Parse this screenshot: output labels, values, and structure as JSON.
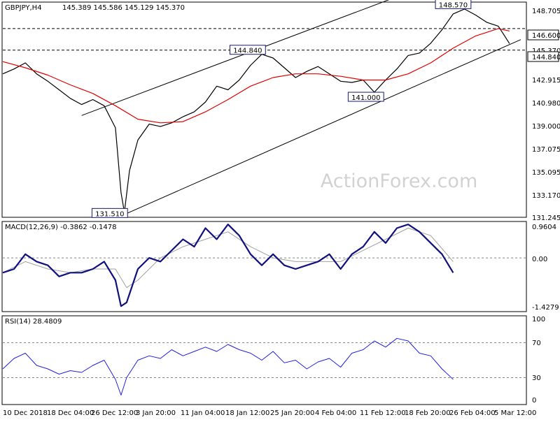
{
  "header": {
    "symbol": "GBPJPY,H4",
    "ohlc": "145.389 145.586 145.129 145.370"
  },
  "watermark": "ActionForex.com",
  "colors": {
    "price": "#000000",
    "sma": "#e00000",
    "macd": "#101080",
    "signal": "#a0a0a0",
    "rsi": "#2020e0",
    "channel": "#000000",
    "level_line": "#000000"
  },
  "x_axis": {
    "labels": [
      "10 Dec 2018",
      "18 Dec 04:00",
      "26 Dec 12:00",
      "3 Jan 20:00",
      "11 Jan 04:00",
      "18 Jan 12:00",
      "25 Jan 20:00",
      "4 Feb 04:00",
      "11 Feb 12:00",
      "18 Feb 20:00",
      "26 Feb 04:00",
      "5 Mar 12:00"
    ]
  },
  "chart_data": [
    {
      "type": "candlestick",
      "series": [
        {
          "name": "GBPJPY,H4"
        }
      ],
      "y_ticks": [
        "148.705",
        "146.600",
        "145.370",
        "144.840",
        "142.915",
        "140.980",
        "139.000",
        "137.075",
        "135.095",
        "133.170",
        "131.245"
      ],
      "ylim": [
        131.245,
        148.705
      ],
      "price_path": [
        {
          "x": 0,
          "y": 142.9
        },
        {
          "x": 2,
          "y": 143.3
        },
        {
          "x": 4,
          "y": 143.8
        },
        {
          "x": 6,
          "y": 142.9
        },
        {
          "x": 8,
          "y": 142.3
        },
        {
          "x": 10,
          "y": 141.6
        },
        {
          "x": 12,
          "y": 140.9
        },
        {
          "x": 14,
          "y": 140.4
        },
        {
          "x": 16,
          "y": 140.8
        },
        {
          "x": 18,
          "y": 140.3
        },
        {
          "x": 20,
          "y": 138.5
        },
        {
          "x": 21,
          "y": 133.2
        },
        {
          "x": 21.6,
          "y": 131.6
        },
        {
          "x": 22.5,
          "y": 135.0
        },
        {
          "x": 24,
          "y": 137.5
        },
        {
          "x": 26,
          "y": 138.8
        },
        {
          "x": 28,
          "y": 138.6
        },
        {
          "x": 30,
          "y": 138.9
        },
        {
          "x": 32,
          "y": 139.4
        },
        {
          "x": 34,
          "y": 139.8
        },
        {
          "x": 36,
          "y": 140.6
        },
        {
          "x": 38,
          "y": 141.9
        },
        {
          "x": 40,
          "y": 141.6
        },
        {
          "x": 42,
          "y": 142.4
        },
        {
          "x": 44,
          "y": 143.6
        },
        {
          "x": 46,
          "y": 144.5
        },
        {
          "x": 48,
          "y": 144.2
        },
        {
          "x": 50,
          "y": 143.4
        },
        {
          "x": 52,
          "y": 142.6
        },
        {
          "x": 54,
          "y": 143.1
        },
        {
          "x": 56,
          "y": 143.5
        },
        {
          "x": 58,
          "y": 142.9
        },
        {
          "x": 60,
          "y": 142.3
        },
        {
          "x": 62,
          "y": 142.2
        },
        {
          "x": 64,
          "y": 142.4
        },
        {
          "x": 66,
          "y": 141.4
        },
        {
          "x": 68,
          "y": 142.4
        },
        {
          "x": 70,
          "y": 143.3
        },
        {
          "x": 72,
          "y": 144.4
        },
        {
          "x": 74,
          "y": 144.6
        },
        {
          "x": 76,
          "y": 145.4
        },
        {
          "x": 78,
          "y": 146.5
        },
        {
          "x": 80,
          "y": 147.8
        },
        {
          "x": 82,
          "y": 148.2
        },
        {
          "x": 84,
          "y": 147.7
        },
        {
          "x": 86,
          "y": 147.1
        },
        {
          "x": 88,
          "y": 146.8
        },
        {
          "x": 89,
          "y": 146.1
        },
        {
          "x": 90,
          "y": 145.37
        }
      ],
      "sma_path": [
        {
          "x": 0,
          "y": 143.9
        },
        {
          "x": 4,
          "y": 143.4
        },
        {
          "x": 8,
          "y": 142.8
        },
        {
          "x": 12,
          "y": 142.0
        },
        {
          "x": 16,
          "y": 141.3
        },
        {
          "x": 20,
          "y": 140.3
        },
        {
          "x": 24,
          "y": 139.2
        },
        {
          "x": 28,
          "y": 138.9
        },
        {
          "x": 32,
          "y": 139.0
        },
        {
          "x": 36,
          "y": 139.8
        },
        {
          "x": 40,
          "y": 140.8
        },
        {
          "x": 44,
          "y": 141.9
        },
        {
          "x": 48,
          "y": 142.6
        },
        {
          "x": 52,
          "y": 142.9
        },
        {
          "x": 56,
          "y": 142.9
        },
        {
          "x": 60,
          "y": 142.7
        },
        {
          "x": 64,
          "y": 142.4
        },
        {
          "x": 68,
          "y": 142.4
        },
        {
          "x": 72,
          "y": 142.9
        },
        {
          "x": 76,
          "y": 143.8
        },
        {
          "x": 80,
          "y": 145.0
        },
        {
          "x": 84,
          "y": 146.0
        },
        {
          "x": 88,
          "y": 146.6
        },
        {
          "x": 90,
          "y": 146.4
        }
      ],
      "channel_upper": [
        {
          "x": 14,
          "y": 139.5
        },
        {
          "x": 70,
          "y": 149.2
        }
      ],
      "channel_lower": [
        {
          "x": 22,
          "y": 131.5
        },
        {
          "x": 92,
          "y": 145.7
        }
      ],
      "horizontal_levels": [
        146.6,
        144.84
      ],
      "annotations": [
        {
          "text": "148.570",
          "x": 80,
          "y": 148.57
        },
        {
          "text": "144.840",
          "x": 43.5,
          "y": 144.84
        },
        {
          "text": "141.000",
          "x": 64.5,
          "y": 141.0
        },
        {
          "text": "131.510",
          "x": 19,
          "y": 131.51
        }
      ]
    },
    {
      "type": "line",
      "title": "MACD(12,26,9) -0.3862 -0.1478",
      "series": [
        {
          "name": "MACD"
        },
        {
          "name": "Signal"
        }
      ],
      "y_ticks": [
        "0.9604",
        "0.00",
        "-1.4279"
      ],
      "ylim": [
        -1.4279,
        0.9604
      ],
      "macd_path": [
        {
          "x": 0,
          "y": -0.4
        },
        {
          "x": 2,
          "y": -0.3
        },
        {
          "x": 4,
          "y": 0.1
        },
        {
          "x": 6,
          "y": -0.1
        },
        {
          "x": 8,
          "y": -0.2
        },
        {
          "x": 10,
          "y": -0.5
        },
        {
          "x": 12,
          "y": -0.4
        },
        {
          "x": 14,
          "y": -0.4
        },
        {
          "x": 16,
          "y": -0.3
        },
        {
          "x": 18,
          "y": -0.1
        },
        {
          "x": 20,
          "y": -0.6
        },
        {
          "x": 21,
          "y": -1.3
        },
        {
          "x": 22,
          "y": -1.2
        },
        {
          "x": 24,
          "y": -0.3
        },
        {
          "x": 26,
          "y": 0.0
        },
        {
          "x": 28,
          "y": -0.1
        },
        {
          "x": 30,
          "y": 0.2
        },
        {
          "x": 32,
          "y": 0.5
        },
        {
          "x": 34,
          "y": 0.3
        },
        {
          "x": 36,
          "y": 0.8
        },
        {
          "x": 38,
          "y": 0.5
        },
        {
          "x": 40,
          "y": 0.9
        },
        {
          "x": 42,
          "y": 0.6
        },
        {
          "x": 44,
          "y": 0.1
        },
        {
          "x": 46,
          "y": -0.2
        },
        {
          "x": 48,
          "y": 0.1
        },
        {
          "x": 50,
          "y": -0.2
        },
        {
          "x": 52,
          "y": -0.3
        },
        {
          "x": 54,
          "y": -0.2
        },
        {
          "x": 56,
          "y": -0.1
        },
        {
          "x": 58,
          "y": 0.1
        },
        {
          "x": 60,
          "y": -0.3
        },
        {
          "x": 62,
          "y": 0.1
        },
        {
          "x": 64,
          "y": 0.3
        },
        {
          "x": 66,
          "y": 0.7
        },
        {
          "x": 68,
          "y": 0.4
        },
        {
          "x": 70,
          "y": 0.8
        },
        {
          "x": 72,
          "y": 0.9
        },
        {
          "x": 74,
          "y": 0.7
        },
        {
          "x": 76,
          "y": 0.4
        },
        {
          "x": 78,
          "y": 0.1
        },
        {
          "x": 80,
          "y": -0.4
        }
      ],
      "signal_path": [
        {
          "x": 0,
          "y": -0.4
        },
        {
          "x": 4,
          "y": -0.1
        },
        {
          "x": 8,
          "y": -0.3
        },
        {
          "x": 12,
          "y": -0.4
        },
        {
          "x": 16,
          "y": -0.3
        },
        {
          "x": 20,
          "y": -0.3
        },
        {
          "x": 22,
          "y": -0.8
        },
        {
          "x": 24,
          "y": -0.6
        },
        {
          "x": 28,
          "y": 0.0
        },
        {
          "x": 32,
          "y": 0.3
        },
        {
          "x": 36,
          "y": 0.5
        },
        {
          "x": 40,
          "y": 0.7
        },
        {
          "x": 44,
          "y": 0.3
        },
        {
          "x": 48,
          "y": 0.0
        },
        {
          "x": 52,
          "y": -0.1
        },
        {
          "x": 56,
          "y": -0.1
        },
        {
          "x": 60,
          "y": -0.1
        },
        {
          "x": 64,
          "y": 0.2
        },
        {
          "x": 68,
          "y": 0.5
        },
        {
          "x": 72,
          "y": 0.8
        },
        {
          "x": 76,
          "y": 0.6
        },
        {
          "x": 80,
          "y": -0.1
        }
      ]
    },
    {
      "type": "line",
      "title": "RSI(14) 28.4809",
      "series": [
        {
          "name": "RSI(14)"
        }
      ],
      "y_ticks": [
        "100",
        "70",
        "30",
        "0"
      ],
      "ylim": [
        0,
        100
      ],
      "levels": [
        70,
        30
      ],
      "rsi_path": [
        {
          "x": 0,
          "y": 40
        },
        {
          "x": 2,
          "y": 52
        },
        {
          "x": 4,
          "y": 58
        },
        {
          "x": 6,
          "y": 44
        },
        {
          "x": 8,
          "y": 40
        },
        {
          "x": 10,
          "y": 34
        },
        {
          "x": 12,
          "y": 38
        },
        {
          "x": 14,
          "y": 36
        },
        {
          "x": 16,
          "y": 44
        },
        {
          "x": 18,
          "y": 50
        },
        {
          "x": 20,
          "y": 28
        },
        {
          "x": 21,
          "y": 10
        },
        {
          "x": 22,
          "y": 30
        },
        {
          "x": 24,
          "y": 50
        },
        {
          "x": 26,
          "y": 55
        },
        {
          "x": 28,
          "y": 52
        },
        {
          "x": 30,
          "y": 62
        },
        {
          "x": 32,
          "y": 55
        },
        {
          "x": 34,
          "y": 60
        },
        {
          "x": 36,
          "y": 65
        },
        {
          "x": 38,
          "y": 60
        },
        {
          "x": 40,
          "y": 68
        },
        {
          "x": 42,
          "y": 62
        },
        {
          "x": 44,
          "y": 58
        },
        {
          "x": 46,
          "y": 50
        },
        {
          "x": 48,
          "y": 60
        },
        {
          "x": 50,
          "y": 47
        },
        {
          "x": 52,
          "y": 50
        },
        {
          "x": 54,
          "y": 40
        },
        {
          "x": 56,
          "y": 48
        },
        {
          "x": 58,
          "y": 52
        },
        {
          "x": 60,
          "y": 42
        },
        {
          "x": 62,
          "y": 58
        },
        {
          "x": 64,
          "y": 62
        },
        {
          "x": 66,
          "y": 72
        },
        {
          "x": 68,
          "y": 65
        },
        {
          "x": 70,
          "y": 75
        },
        {
          "x": 72,
          "y": 72
        },
        {
          "x": 74,
          "y": 58
        },
        {
          "x": 76,
          "y": 55
        },
        {
          "x": 78,
          "y": 40
        },
        {
          "x": 80,
          "y": 28
        }
      ]
    }
  ]
}
